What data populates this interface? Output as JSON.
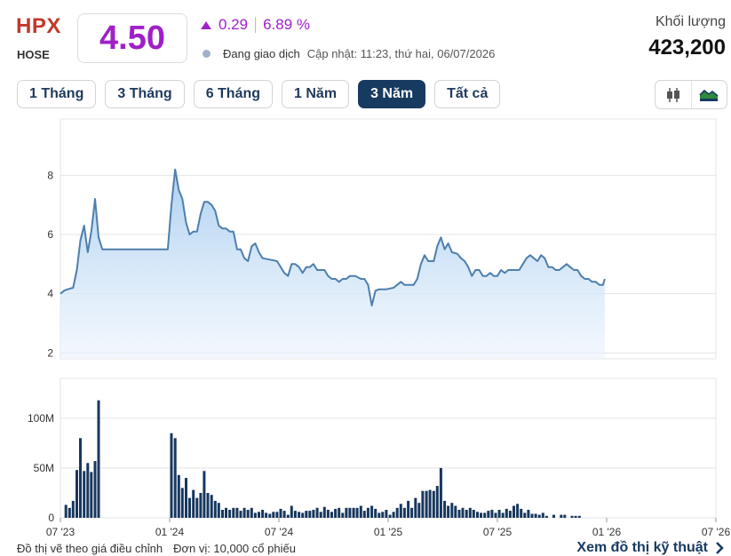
{
  "header": {
    "ticker": "HPX",
    "exchange": "HOSE",
    "price": "4.50",
    "change": "0.29",
    "change_pct": "6.89 %",
    "status": "Đang giao dịch",
    "updated": "Cập nhật: 11:23, thứ hai, 06/07/2026",
    "volume_label": "Khối lượng",
    "volume_value": "423,200"
  },
  "tabs": [
    {
      "label": "1 Tháng"
    },
    {
      "label": "3 Tháng"
    },
    {
      "label": "6 Tháng"
    },
    {
      "label": "1 Năm"
    },
    {
      "label": "3 Năm",
      "active": true
    },
    {
      "label": "Tất cả"
    }
  ],
  "tools": [
    {
      "icon": "candlestick-icon"
    },
    {
      "icon": "area-chart-icon"
    }
  ],
  "footer": {
    "note": "Đồ thị vẽ theo giá điều chỉnh",
    "unit": "Đơn vị: 10,000 cổ phiếu",
    "link": "Xem đồ thị kỹ thuật"
  },
  "colors": {
    "line": "#4e7fae",
    "fill_top": "#a9cdf0",
    "bar": "#17375e",
    "accent": "#a020c8",
    "ticker": "#c0392b"
  },
  "chart_data": [
    {
      "type": "area",
      "yticks": [
        2,
        4,
        6,
        8
      ],
      "ylim": [
        1.8,
        9.9
      ],
      "x_range": [
        0,
        36
      ],
      "grid": true,
      "xticks": [
        {
          "x": 0,
          "label": "07 '23"
        },
        {
          "x": 6,
          "label": "01 '24"
        },
        {
          "x": 12,
          "label": "07 '24"
        },
        {
          "x": 18,
          "label": "01 '25"
        },
        {
          "x": 24,
          "label": "07 '25"
        },
        {
          "x": 30,
          "label": "01 '26"
        },
        {
          "x": 36,
          "label": "07 '26"
        }
      ],
      "series": [
        {
          "points": [
            [
              0,
              4.0
            ],
            [
              0.2,
              4.1
            ],
            [
              0.4,
              4.15
            ],
            [
              0.7,
              4.2
            ],
            [
              0.9,
              4.8
            ],
            [
              1.1,
              5.8
            ],
            [
              1.3,
              6.3
            ],
            [
              1.5,
              5.4
            ],
            [
              1.7,
              6.1
            ],
            [
              1.9,
              7.2
            ],
            [
              2.1,
              5.9
            ],
            [
              2.3,
              5.5
            ],
            [
              4.0,
              5.5
            ],
            [
              5.0,
              5.5
            ],
            [
              5.9,
              5.5
            ],
            [
              6.1,
              7.0
            ],
            [
              6.3,
              8.2
            ],
            [
              6.5,
              7.5
            ],
            [
              6.7,
              7.2
            ],
            [
              6.9,
              6.4
            ],
            [
              7.1,
              6.0
            ],
            [
              7.3,
              6.1
            ],
            [
              7.5,
              6.1
            ],
            [
              7.7,
              6.7
            ],
            [
              7.9,
              7.1
            ],
            [
              8.1,
              7.1
            ],
            [
              8.3,
              7.0
            ],
            [
              8.5,
              6.8
            ],
            [
              8.7,
              6.3
            ],
            [
              8.9,
              6.2
            ],
            [
              9.1,
              6.2
            ],
            [
              9.3,
              6.1
            ],
            [
              9.5,
              6.1
            ],
            [
              9.7,
              5.5
            ],
            [
              9.9,
              5.5
            ],
            [
              10.1,
              5.2
            ],
            [
              10.3,
              5.1
            ],
            [
              10.5,
              5.6
            ],
            [
              10.7,
              5.7
            ],
            [
              10.9,
              5.4
            ],
            [
              11.1,
              5.2
            ],
            [
              11.5,
              5.15
            ],
            [
              11.9,
              5.1
            ],
            [
              12.3,
              4.7
            ],
            [
              12.5,
              4.6
            ],
            [
              12.7,
              5.0
            ],
            [
              12.9,
              5.0
            ],
            [
              13.1,
              4.9
            ],
            [
              13.3,
              4.7
            ],
            [
              13.5,
              4.9
            ],
            [
              13.7,
              4.9
            ],
            [
              13.9,
              5.0
            ],
            [
              14.1,
              4.8
            ],
            [
              14.3,
              4.8
            ],
            [
              14.5,
              4.8
            ],
            [
              14.7,
              4.6
            ],
            [
              14.9,
              4.5
            ],
            [
              15.1,
              4.5
            ],
            [
              15.3,
              4.4
            ],
            [
              15.5,
              4.5
            ],
            [
              15.7,
              4.5
            ],
            [
              15.9,
              4.6
            ],
            [
              16.2,
              4.6
            ],
            [
              16.5,
              4.5
            ],
            [
              16.7,
              4.5
            ],
            [
              16.9,
              4.3
            ],
            [
              17.1,
              3.6
            ],
            [
              17.3,
              4.1
            ],
            [
              17.5,
              4.15
            ],
            [
              17.9,
              4.15
            ],
            [
              18.3,
              4.2
            ],
            [
              18.5,
              4.3
            ],
            [
              18.7,
              4.4
            ],
            [
              18.9,
              4.3
            ],
            [
              19.1,
              4.3
            ],
            [
              19.4,
              4.3
            ],
            [
              19.6,
              4.5
            ],
            [
              19.8,
              5.0
            ],
            [
              20.0,
              5.3
            ],
            [
              20.2,
              5.1
            ],
            [
              20.5,
              5.1
            ],
            [
              20.7,
              5.6
            ],
            [
              20.9,
              5.9
            ],
            [
              21.1,
              5.5
            ],
            [
              21.3,
              5.7
            ],
            [
              21.5,
              5.4
            ],
            [
              21.8,
              5.35
            ],
            [
              22.0,
              5.2
            ],
            [
              22.2,
              5.1
            ],
            [
              22.4,
              4.9
            ],
            [
              22.6,
              4.6
            ],
            [
              22.8,
              4.8
            ],
            [
              23.0,
              4.8
            ],
            [
              23.2,
              4.6
            ],
            [
              23.4,
              4.6
            ],
            [
              23.6,
              4.7
            ],
            [
              23.8,
              4.6
            ],
            [
              24.0,
              4.6
            ],
            [
              24.2,
              4.8
            ],
            [
              24.4,
              4.7
            ],
            [
              24.6,
              4.8
            ],
            [
              24.8,
              4.8
            ],
            [
              25.0,
              4.8
            ],
            [
              25.2,
              4.8
            ],
            [
              25.4,
              5.0
            ],
            [
              25.6,
              5.2
            ],
            [
              25.8,
              5.3
            ],
            [
              26.0,
              5.2
            ],
            [
              26.2,
              5.1
            ],
            [
              26.4,
              5.3
            ],
            [
              26.6,
              5.2
            ],
            [
              26.8,
              4.9
            ],
            [
              27.0,
              4.9
            ],
            [
              27.2,
              4.8
            ],
            [
              27.4,
              4.8
            ],
            [
              27.6,
              4.9
            ],
            [
              27.8,
              5.0
            ],
            [
              28.0,
              4.9
            ],
            [
              28.2,
              4.8
            ],
            [
              28.4,
              4.8
            ],
            [
              28.6,
              4.6
            ],
            [
              28.8,
              4.5
            ],
            [
              29.0,
              4.5
            ],
            [
              29.2,
              4.4
            ],
            [
              29.4,
              4.4
            ],
            [
              29.6,
              4.3
            ],
            [
              29.8,
              4.3
            ],
            [
              29.9,
              4.5
            ]
          ]
        }
      ]
    },
    {
      "type": "bar",
      "yticks": [
        0,
        50,
        100
      ],
      "ytick_labels": [
        "0",
        "50M",
        "100M"
      ],
      "ylim": [
        0,
        140
      ],
      "x_range": [
        0,
        36
      ],
      "grid": true,
      "xticks": [
        {
          "x": 0,
          "label": "07 '23"
        },
        {
          "x": 6,
          "label": "01 '24"
        },
        {
          "x": 12,
          "label": "07 '24"
        },
        {
          "x": 18,
          "label": "01 '25"
        },
        {
          "x": 24,
          "label": "07 '25"
        },
        {
          "x": 30,
          "label": "01 '26"
        },
        {
          "x": 36,
          "label": "07 '26"
        }
      ],
      "bars": [
        [
          0.3,
          13
        ],
        [
          0.5,
          10
        ],
        [
          0.7,
          17
        ],
        [
          0.9,
          48
        ],
        [
          1.1,
          80
        ],
        [
          1.3,
          47
        ],
        [
          1.5,
          55
        ],
        [
          1.7,
          46
        ],
        [
          1.9,
          57
        ],
        [
          2.1,
          118
        ],
        [
          6.1,
          85
        ],
        [
          6.3,
          80
        ],
        [
          6.5,
          43
        ],
        [
          6.7,
          30
        ],
        [
          6.9,
          40
        ],
        [
          7.1,
          20
        ],
        [
          7.3,
          28
        ],
        [
          7.5,
          20
        ],
        [
          7.7,
          25
        ],
        [
          7.9,
          47
        ],
        [
          8.1,
          25
        ],
        [
          8.3,
          23
        ],
        [
          8.5,
          17
        ],
        [
          8.7,
          15
        ],
        [
          8.9,
          8
        ],
        [
          9.1,
          10
        ],
        [
          9.3,
          8
        ],
        [
          9.5,
          10
        ],
        [
          9.7,
          10
        ],
        [
          9.9,
          7
        ],
        [
          10.1,
          10
        ],
        [
          10.3,
          8
        ],
        [
          10.5,
          10
        ],
        [
          10.7,
          5
        ],
        [
          10.9,
          6
        ],
        [
          11.1,
          8
        ],
        [
          11.3,
          5
        ],
        [
          11.5,
          4
        ],
        [
          11.7,
          6
        ],
        [
          11.9,
          6
        ],
        [
          12.1,
          9
        ],
        [
          12.3,
          7
        ],
        [
          12.5,
          3
        ],
        [
          12.7,
          12
        ],
        [
          12.9,
          7
        ],
        [
          13.1,
          6
        ],
        [
          13.3,
          5
        ],
        [
          13.5,
          7
        ],
        [
          13.7,
          7
        ],
        [
          13.9,
          8
        ],
        [
          14.1,
          10
        ],
        [
          14.3,
          6
        ],
        [
          14.5,
          11
        ],
        [
          14.7,
          8
        ],
        [
          14.9,
          6
        ],
        [
          15.1,
          9
        ],
        [
          15.3,
          10
        ],
        [
          15.5,
          5
        ],
        [
          15.7,
          10
        ],
        [
          15.9,
          10
        ],
        [
          16.1,
          10
        ],
        [
          16.3,
          10
        ],
        [
          16.5,
          12
        ],
        [
          16.7,
          7
        ],
        [
          16.9,
          10
        ],
        [
          17.1,
          12
        ],
        [
          17.3,
          9
        ],
        [
          17.5,
          5
        ],
        [
          17.7,
          6
        ],
        [
          17.9,
          8
        ],
        [
          18.1,
          3
        ],
        [
          18.3,
          6
        ],
        [
          18.5,
          10
        ],
        [
          18.7,
          14
        ],
        [
          18.9,
          10
        ],
        [
          19.1,
          17
        ],
        [
          19.3,
          10
        ],
        [
          19.5,
          20
        ],
        [
          19.7,
          15
        ],
        [
          19.9,
          27
        ],
        [
          20.1,
          27
        ],
        [
          20.3,
          28
        ],
        [
          20.5,
          27
        ],
        [
          20.7,
          32
        ],
        [
          20.9,
          50
        ],
        [
          21.1,
          17
        ],
        [
          21.3,
          12
        ],
        [
          21.5,
          15
        ],
        [
          21.7,
          12
        ],
        [
          21.9,
          8
        ],
        [
          22.1,
          10
        ],
        [
          22.3,
          8
        ],
        [
          22.5,
          10
        ],
        [
          22.7,
          8
        ],
        [
          22.9,
          6
        ],
        [
          23.1,
          5
        ],
        [
          23.3,
          5
        ],
        [
          23.5,
          7
        ],
        [
          23.7,
          8
        ],
        [
          23.9,
          5
        ],
        [
          24.1,
          8
        ],
        [
          24.3,
          5
        ],
        [
          24.5,
          9
        ],
        [
          24.7,
          7
        ],
        [
          24.9,
          12
        ],
        [
          25.1,
          14
        ],
        [
          25.3,
          9
        ],
        [
          25.5,
          5
        ],
        [
          25.7,
          8
        ],
        [
          25.9,
          4
        ],
        [
          26.1,
          4
        ],
        [
          26.3,
          3
        ],
        [
          26.5,
          5
        ],
        [
          26.7,
          2
        ],
        [
          27.1,
          3
        ],
        [
          27.5,
          3
        ],
        [
          27.7,
          3
        ],
        [
          28.1,
          2
        ],
        [
          28.3,
          2
        ],
        [
          28.5,
          2
        ]
      ]
    }
  ]
}
